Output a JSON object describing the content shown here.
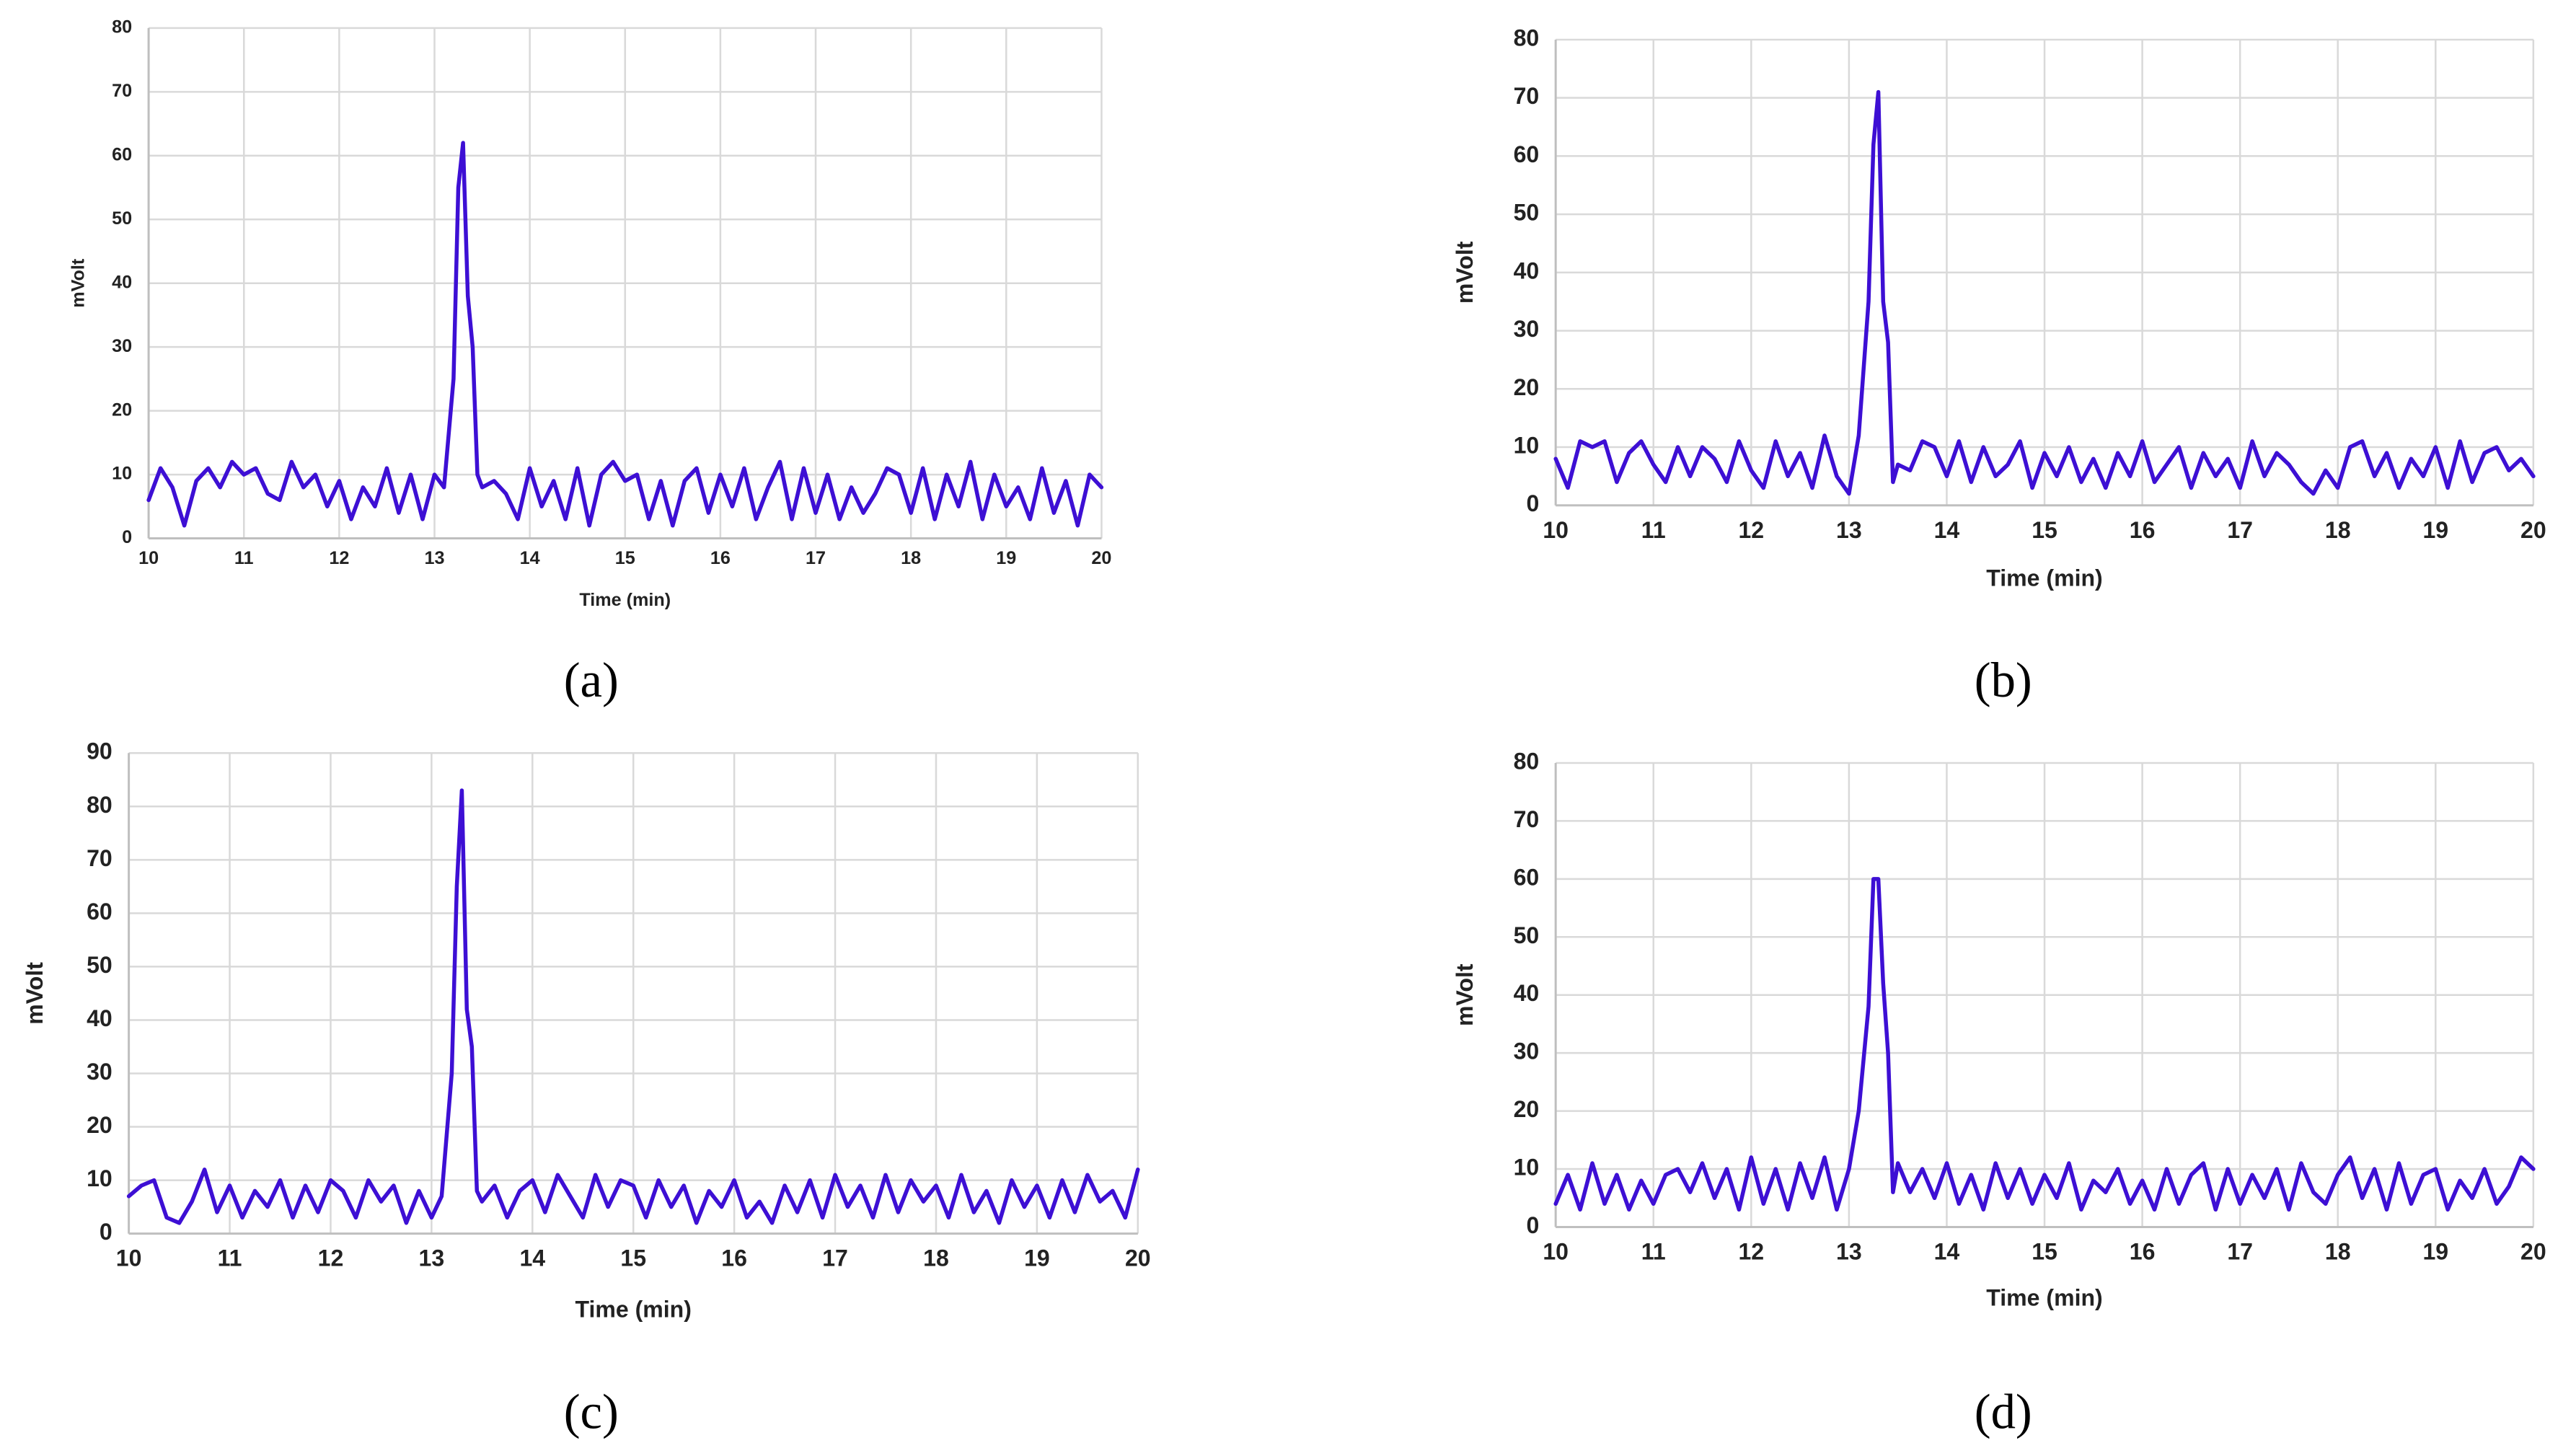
{
  "chart_data": [
    {
      "type": "line",
      "label": "(a)",
      "x_label": "Time (min)",
      "y_label": "mVolt",
      "x": [
        10,
        10.125,
        10.25,
        10.375,
        10.5,
        10.625,
        10.75,
        10.875,
        11,
        11.125,
        11.25,
        11.375,
        11.5,
        11.625,
        11.75,
        11.875,
        12,
        12.125,
        12.25,
        12.375,
        12.5,
        12.625,
        12.75,
        12.875,
        13,
        13.1,
        13.2,
        13.25,
        13.3,
        13.35,
        13.4,
        13.45,
        13.5,
        13.625,
        13.75,
        13.875,
        14,
        14.125,
        14.25,
        14.375,
        14.5,
        14.625,
        14.75,
        14.875,
        15,
        15.125,
        15.25,
        15.375,
        15.5,
        15.625,
        15.75,
        15.875,
        16,
        16.125,
        16.25,
        16.375,
        16.5,
        16.625,
        16.75,
        16.875,
        17,
        17.125,
        17.25,
        17.375,
        17.5,
        17.625,
        17.75,
        17.875,
        18,
        18.125,
        18.25,
        18.375,
        18.5,
        18.625,
        18.75,
        18.875,
        19,
        19.125,
        19.25,
        19.375,
        19.5,
        19.625,
        19.75,
        19.875,
        20
      ],
      "values": [
        6,
        11,
        8,
        2,
        9,
        11,
        8,
        12,
        10,
        11,
        7,
        6,
        12,
        8,
        10,
        5,
        9,
        3,
        8,
        5,
        11,
        4,
        10,
        3,
        10,
        8,
        25,
        55,
        62,
        38,
        30,
        10,
        8,
        9,
        7,
        3,
        11,
        5,
        9,
        3,
        11,
        2,
        10,
        12,
        9,
        10,
        3,
        9,
        2,
        9,
        11,
        4,
        10,
        5,
        11,
        3,
        8,
        12,
        3,
        11,
        4,
        10,
        3,
        8,
        4,
        7,
        11,
        10,
        4,
        11,
        3,
        10,
        5,
        12,
        3,
        10,
        5,
        8,
        3,
        11,
        4,
        9,
        2,
        10,
        8
      ],
      "color": "#3d0fd4",
      "xlim": [
        10,
        20
      ],
      "ylim": [
        0,
        80
      ],
      "xticks": [
        10,
        11,
        12,
        13,
        14,
        15,
        16,
        17,
        18,
        19,
        20
      ],
      "yticks": [
        0,
        10,
        20,
        30,
        40,
        50,
        60,
        70,
        80
      ],
      "grid": true
    },
    {
      "type": "line",
      "label": "(b)",
      "x_label": "Time (min)",
      "y_label": "mVolt",
      "x": [
        10,
        10.125,
        10.25,
        10.375,
        10.5,
        10.625,
        10.75,
        10.875,
        11,
        11.125,
        11.25,
        11.375,
        11.5,
        11.625,
        11.75,
        11.875,
        12,
        12.125,
        12.25,
        12.375,
        12.5,
        12.625,
        12.75,
        12.875,
        13,
        13.1,
        13.2,
        13.25,
        13.3,
        13.35,
        13.4,
        13.45,
        13.5,
        13.625,
        13.75,
        13.875,
        14,
        14.125,
        14.25,
        14.375,
        14.5,
        14.625,
        14.75,
        14.875,
        15,
        15.125,
        15.25,
        15.375,
        15.5,
        15.625,
        15.75,
        15.875,
        16,
        16.125,
        16.25,
        16.375,
        16.5,
        16.625,
        16.75,
        16.875,
        17,
        17.125,
        17.25,
        17.375,
        17.5,
        17.625,
        17.75,
        17.875,
        18,
        18.125,
        18.25,
        18.375,
        18.5,
        18.625,
        18.75,
        18.875,
        19,
        19.125,
        19.25,
        19.375,
        19.5,
        19.625,
        19.75,
        19.875,
        20
      ],
      "values": [
        8,
        3,
        11,
        10,
        11,
        4,
        9,
        11,
        7,
        4,
        10,
        5,
        10,
        8,
        4,
        11,
        6,
        3,
        11,
        5,
        9,
        3,
        12,
        5,
        2,
        12,
        35,
        62,
        71,
        35,
        28,
        4,
        7,
        6,
        11,
        10,
        5,
        11,
        4,
        10,
        5,
        7,
        11,
        3,
        9,
        5,
        10,
        4,
        8,
        3,
        9,
        5,
        11,
        4,
        7,
        10,
        3,
        9,
        5,
        8,
        3,
        11,
        5,
        9,
        7,
        4,
        2,
        6,
        3,
        10,
        11,
        5,
        9,
        3,
        8,
        5,
        10,
        3,
        11,
        4,
        9,
        10,
        6,
        8,
        5
      ],
      "color": "#3d0fd4",
      "xlim": [
        10,
        20
      ],
      "ylim": [
        0,
        80
      ],
      "xticks": [
        10,
        11,
        12,
        13,
        14,
        15,
        16,
        17,
        18,
        19,
        20
      ],
      "yticks": [
        0,
        10,
        20,
        30,
        40,
        50,
        60,
        70,
        80
      ],
      "grid": true
    },
    {
      "type": "line",
      "label": "(c)",
      "x_label": "Time (min)",
      "y_label": "mVolt",
      "x": [
        10,
        10.125,
        10.25,
        10.375,
        10.5,
        10.625,
        10.75,
        10.875,
        11,
        11.125,
        11.25,
        11.375,
        11.5,
        11.625,
        11.75,
        11.875,
        12,
        12.125,
        12.25,
        12.375,
        12.5,
        12.625,
        12.75,
        12.875,
        13,
        13.1,
        13.2,
        13.25,
        13.3,
        13.35,
        13.4,
        13.45,
        13.5,
        13.625,
        13.75,
        13.875,
        14,
        14.125,
        14.25,
        14.375,
        14.5,
        14.625,
        14.75,
        14.875,
        15,
        15.125,
        15.25,
        15.375,
        15.5,
        15.625,
        15.75,
        15.875,
        16,
        16.125,
        16.25,
        16.375,
        16.5,
        16.625,
        16.75,
        16.875,
        17,
        17.125,
        17.25,
        17.375,
        17.5,
        17.625,
        17.75,
        17.875,
        18,
        18.125,
        18.25,
        18.375,
        18.5,
        18.625,
        18.75,
        18.875,
        19,
        19.125,
        19.25,
        19.375,
        19.5,
        19.625,
        19.75,
        19.875,
        20
      ],
      "values": [
        7,
        9,
        10,
        3,
        2,
        6,
        12,
        4,
        9,
        3,
        8,
        5,
        10,
        3,
        9,
        4,
        10,
        8,
        3,
        10,
        6,
        9,
        2,
        8,
        3,
        7,
        30,
        65,
        83,
        42,
        35,
        8,
        6,
        9,
        3,
        8,
        10,
        4,
        11,
        7,
        3,
        11,
        5,
        10,
        9,
        3,
        10,
        5,
        9,
        2,
        8,
        5,
        10,
        3,
        6,
        2,
        9,
        4,
        10,
        3,
        11,
        5,
        9,
        3,
        11,
        4,
        10,
        6,
        9,
        3,
        11,
        4,
        8,
        2,
        10,
        5,
        9,
        3,
        10,
        4,
        11,
        6,
        8,
        3,
        12
      ],
      "color": "#3d0fd4",
      "xlim": [
        10,
        20
      ],
      "ylim": [
        0,
        90
      ],
      "xticks": [
        10,
        11,
        12,
        13,
        14,
        15,
        16,
        17,
        18,
        19,
        20
      ],
      "yticks": [
        0,
        10,
        20,
        30,
        40,
        50,
        60,
        70,
        80,
        90
      ],
      "grid": true
    },
    {
      "type": "line",
      "label": "(d)",
      "x_label": "Time (min)",
      "y_label": "mVolt",
      "x": [
        10,
        10.125,
        10.25,
        10.375,
        10.5,
        10.625,
        10.75,
        10.875,
        11,
        11.125,
        11.25,
        11.375,
        11.5,
        11.625,
        11.75,
        11.875,
        12,
        12.125,
        12.25,
        12.375,
        12.5,
        12.625,
        12.75,
        12.875,
        13,
        13.1,
        13.2,
        13.25,
        13.3,
        13.35,
        13.4,
        13.45,
        13.5,
        13.625,
        13.75,
        13.875,
        14,
        14.125,
        14.25,
        14.375,
        14.5,
        14.625,
        14.75,
        14.875,
        15,
        15.125,
        15.25,
        15.375,
        15.5,
        15.625,
        15.75,
        15.875,
        16,
        16.125,
        16.25,
        16.375,
        16.5,
        16.625,
        16.75,
        16.875,
        17,
        17.125,
        17.25,
        17.375,
        17.5,
        17.625,
        17.75,
        17.875,
        18,
        18.125,
        18.25,
        18.375,
        18.5,
        18.625,
        18.75,
        18.875,
        19,
        19.125,
        19.25,
        19.375,
        19.5,
        19.625,
        19.75,
        19.875,
        20
      ],
      "values": [
        4,
        9,
        3,
        11,
        4,
        9,
        3,
        8,
        4,
        9,
        10,
        6,
        11,
        5,
        10,
        3,
        12,
        4,
        10,
        3,
        11,
        5,
        12,
        3,
        10,
        20,
        38,
        60,
        60,
        42,
        30,
        6,
        11,
        6,
        10,
        5,
        11,
        4,
        9,
        3,
        11,
        5,
        10,
        4,
        9,
        5,
        11,
        3,
        8,
        6,
        10,
        4,
        8,
        3,
        10,
        4,
        9,
        11,
        3,
        10,
        4,
        9,
        5,
        10,
        3,
        11,
        6,
        4,
        9,
        12,
        5,
        10,
        3,
        11,
        4,
        9,
        10,
        3,
        8,
        5,
        10,
        4,
        7,
        12,
        10
      ],
      "color": "#3d0fd4",
      "xlim": [
        10,
        20
      ],
      "ylim": [
        0,
        80
      ],
      "xticks": [
        10,
        11,
        12,
        13,
        14,
        15,
        16,
        17,
        18,
        19,
        20
      ],
      "yticks": [
        0,
        10,
        20,
        30,
        40,
        50,
        60,
        70,
        80
      ],
      "grid": true
    }
  ]
}
